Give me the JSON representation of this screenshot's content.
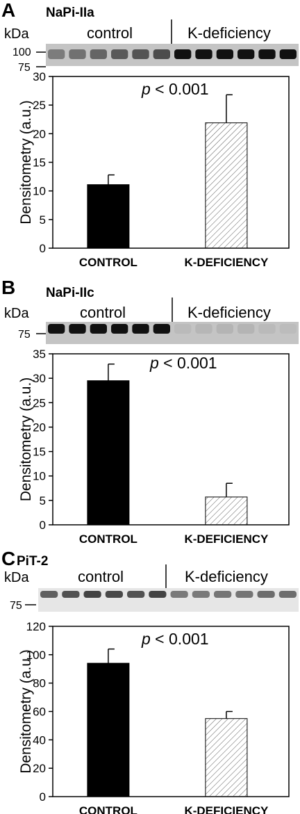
{
  "panels": [
    {
      "letter": "A",
      "protein": "NaPi-IIa",
      "blot": {
        "kda_label": "kDa",
        "group_labels": [
          "control",
          "K-deficiency"
        ],
        "markers": [
          "100",
          "75"
        ],
        "control_band_intensity": [
          0.55,
          0.6,
          0.65,
          0.7,
          0.72,
          0.75
        ],
        "kdef_band_intensity": [
          0.95,
          0.95,
          0.95,
          0.95,
          0.95,
          0.95
        ]
      },
      "p_prefix": "p",
      "p_rest": " < 0.001"
    },
    {
      "letter": "B",
      "protein": "NaPi-IIc",
      "blot": {
        "kda_label": "kDa",
        "group_labels": [
          "control",
          "K-deficiency"
        ],
        "markers": [
          "75"
        ],
        "control_band_intensity": [
          0.95,
          0.95,
          0.95,
          0.95,
          0.95,
          0.95
        ],
        "kdef_band_intensity": [
          0.15,
          0.18,
          0.2,
          0.2,
          0.15,
          0.12
        ]
      },
      "p_prefix": "p",
      "p_rest": " < 0.001"
    },
    {
      "letter": "C",
      "protein": "PiT-2",
      "blot": {
        "kda_label": "kDa",
        "group_labels": [
          "control",
          "K-deficiency"
        ],
        "markers": [
          "75"
        ],
        "control_band_intensity": [
          0.7,
          0.75,
          0.8,
          0.78,
          0.75,
          0.8
        ],
        "kdef_band_intensity": [
          0.6,
          0.6,
          0.62,
          0.62,
          0.65,
          0.65
        ]
      },
      "p_prefix": "p",
      "p_rest": " < 0.001"
    }
  ],
  "chart_data": [
    {
      "type": "bar",
      "categories": [
        "CONTROL",
        "K-DEFICIENCY"
      ],
      "values": [
        11.1,
        21.9
      ],
      "errors": [
        1.7,
        4.9
      ],
      "ylabel": "Densitometry (a.u.)",
      "ylim": [
        0,
        30
      ],
      "yticks": [
        0,
        5,
        10,
        15,
        20,
        25,
        30
      ],
      "annotation": "p < 0.001",
      "colors": [
        "#000000",
        "hatched"
      ]
    },
    {
      "type": "bar",
      "categories": [
        "CONTROL",
        "K-DEFICIENCY"
      ],
      "values": [
        29.5,
        5.7
      ],
      "errors": [
        3.4,
        2.8
      ],
      "ylabel": "Densitometry (a.u.)",
      "ylim": [
        0,
        35
      ],
      "yticks": [
        0,
        5,
        10,
        15,
        20,
        25,
        30,
        35
      ],
      "annotation": "p < 0.001",
      "colors": [
        "#000000",
        "hatched"
      ]
    },
    {
      "type": "bar",
      "categories": [
        "CONTROL",
        "K-DEFICIENCY"
      ],
      "values": [
        94,
        55
      ],
      "errors": [
        10,
        5
      ],
      "ylabel": "Densitometry (a.u.)",
      "ylim": [
        0,
        120
      ],
      "yticks": [
        0,
        20,
        40,
        60,
        80,
        100,
        120
      ],
      "annotation": "p < 0.001",
      "colors": [
        "#000000",
        "hatched"
      ]
    }
  ]
}
